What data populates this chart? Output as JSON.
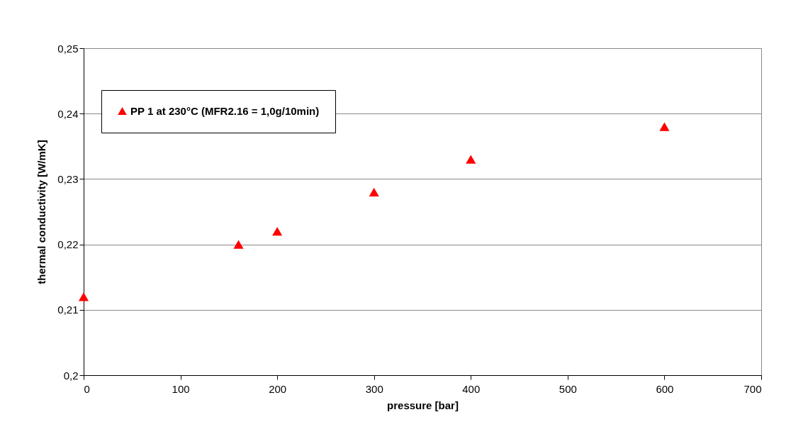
{
  "chart_data": {
    "type": "scatter",
    "xlabel": "pressure [bar]",
    "ylabel": "thermal conductivity [W/mK]",
    "x": [
      0,
      160,
      200,
      300,
      400,
      600
    ],
    "series": [
      {
        "name": "PP 1 at 230°C (MFR2.16 = 1,0g/10min)",
        "color": "#ff0000",
        "values": [
          0.212,
          0.22,
          0.222,
          0.228,
          0.233,
          0.238
        ]
      }
    ],
    "xlim": [
      0,
      700
    ],
    "xticks": [
      0,
      100,
      200,
      300,
      400,
      500,
      600,
      700
    ],
    "ylim": [
      0.2,
      0.25
    ],
    "yticks": [
      {
        "value": 0.2,
        "label": "0,2"
      },
      {
        "value": 0.21,
        "label": "0,21"
      },
      {
        "value": 0.22,
        "label": "0,22"
      },
      {
        "value": 0.23,
        "label": "0,23"
      },
      {
        "value": 0.24,
        "label": "0,24"
      },
      {
        "value": 0.25,
        "label": "0,25"
      }
    ],
    "grid": "y",
    "legend": "top left",
    "marker": "triangle"
  }
}
